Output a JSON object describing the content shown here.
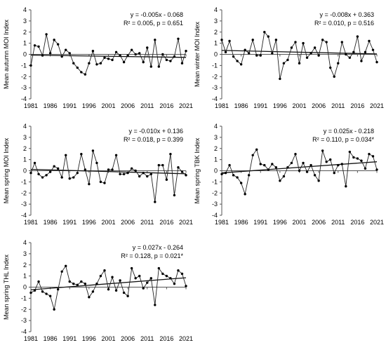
{
  "chart_data": [
    {
      "type": "line",
      "ylabel": "Mean autumn MOI Index",
      "equation": "y = -0.005x - 0.068",
      "stats": "R² = 0.005, p = 0.651",
      "xlim": [
        1981,
        2021
      ],
      "ylim": [
        -4,
        4
      ],
      "xticks": [
        "1981",
        "1986",
        "1991",
        "1996",
        "2001",
        "2006",
        "2011",
        "2016",
        "2021"
      ],
      "yticks": [
        "4",
        "3",
        "2",
        "1",
        "0",
        "-1",
        "-2",
        "-3",
        "-4"
      ],
      "trend": [
        -0.005,
        -0.068
      ],
      "x": [
        1981,
        1982,
        1983,
        1984,
        1985,
        1986,
        1987,
        1988,
        1989,
        1990,
        1991,
        1992,
        1993,
        1994,
        1995,
        1996,
        1997,
        1998,
        1999,
        2000,
        2001,
        2002,
        2003,
        2004,
        2005,
        2006,
        2007,
        2008,
        2009,
        2010,
        2011,
        2012,
        2013,
        2014,
        2015,
        2016,
        2017,
        2018,
        2019,
        2020,
        2021
      ],
      "values": [
        -1.0,
        0.8,
        0.7,
        -0.1,
        1.8,
        0.1,
        1.3,
        0.9,
        -0.2,
        0.4,
        0.1,
        -0.8,
        -1.2,
        -1.6,
        -1.8,
        -0.8,
        0.3,
        -0.9,
        -0.8,
        -0.3,
        -0.4,
        -0.5,
        0.2,
        -0.1,
        -0.7,
        -0.1,
        0.4,
        0.0,
        0.1,
        -0.7,
        0.6,
        -1.1,
        1.3,
        -1.1,
        0.0,
        -0.5,
        -0.6,
        -0.2,
        1.4,
        -0.8,
        0.3
      ]
    },
    {
      "type": "line",
      "ylabel": "Mean winter MOI Index",
      "equation": "y = -0.008x + 0.363",
      "stats": "R² = 0.010, p = 0.516",
      "xlim": [
        1981,
        2021
      ],
      "ylim": [
        -4,
        4
      ],
      "xticks": [
        "1981",
        "1986",
        "1991",
        "1996",
        "2001",
        "2006",
        "2011",
        "2016",
        "2021"
      ],
      "yticks": [
        "4",
        "3",
        "2",
        "1",
        "0",
        "-1",
        "-2",
        "-3",
        "-4"
      ],
      "trend": [
        -0.008,
        0.363
      ],
      "x": [
        1981,
        1982,
        1983,
        1984,
        1985,
        1986,
        1987,
        1988,
        1989,
        1990,
        1991,
        1992,
        1993,
        1994,
        1995,
        1996,
        1997,
        1998,
        1999,
        2000,
        2001,
        2002,
        2003,
        2004,
        2005,
        2006,
        2007,
        2008,
        2009,
        2010,
        2011,
        2012,
        2013,
        2014,
        2015,
        2016,
        2017,
        2018,
        2019,
        2020,
        2021
      ],
      "values": [
        1.3,
        0.2,
        1.2,
        -0.2,
        -0.6,
        -0.9,
        0.4,
        0.1,
        1.3,
        -0.1,
        -0.1,
        2.0,
        1.6,
        0.1,
        1.3,
        -2.2,
        -0.8,
        -0.5,
        0.6,
        1.1,
        -0.8,
        1.0,
        -0.3,
        0.1,
        0.6,
        -0.1,
        1.3,
        1.1,
        -1.2,
        -2.0,
        -0.8,
        1.1,
        0.0,
        -0.3,
        0.2,
        1.6,
        -0.6,
        0.2,
        1.2,
        0.4,
        -0.7
      ]
    },
    {
      "type": "line",
      "ylabel": "Mean spring MOI Index",
      "equation": "y = -0.010x + 0.136",
      "stats": "R² = 0.018, p = 0.399",
      "xlim": [
        1981,
        2021
      ],
      "ylim": [
        -4,
        4
      ],
      "xticks": [
        "1981",
        "1986",
        "1991",
        "1996",
        "2001",
        "2006",
        "2011",
        "2016",
        "2021"
      ],
      "yticks": [
        "4",
        "3",
        "2",
        "1",
        "0",
        "-1",
        "-2",
        "-3",
        "-4"
      ],
      "trend": [
        -0.01,
        0.136
      ],
      "x": [
        1981,
        1982,
        1983,
        1984,
        1985,
        1986,
        1987,
        1988,
        1989,
        1990,
        1991,
        1992,
        1993,
        1994,
        1995,
        1996,
        1997,
        1998,
        1999,
        2000,
        2001,
        2002,
        2003,
        2004,
        2005,
        2006,
        2007,
        2008,
        2009,
        2010,
        2011,
        2012,
        2013,
        2014,
        2015,
        2016,
        2017,
        2018,
        2019,
        2020,
        2021
      ],
      "values": [
        -0.2,
        0.7,
        -0.3,
        -0.6,
        -0.4,
        -0.1,
        0.4,
        0.2,
        -0.6,
        1.4,
        -0.7,
        -0.6,
        -0.2,
        1.5,
        0.1,
        -1.2,
        1.8,
        0.7,
        -1.0,
        -1.1,
        0.1,
        0.1,
        1.4,
        -0.3,
        -0.3,
        -0.2,
        0.2,
        0.0,
        -0.5,
        -0.2,
        -0.5,
        -0.3,
        -2.8,
        0.5,
        0.5,
        -0.8,
        1.5,
        -2.2,
        0.3,
        -0.1,
        -0.4
      ]
    },
    {
      "type": "line",
      "ylabel": "Mean spring TBK Index",
      "equation": "y = 0.025x - 0.218",
      "stats": "R² = 0.110, p = 0.034*",
      "xlim": [
        1981,
        2021
      ],
      "ylim": [
        -4,
        4
      ],
      "xticks": [
        "1981",
        "1986",
        "1991",
        "1996",
        "2001",
        "2006",
        "2011",
        "2016",
        "2021"
      ],
      "yticks": [
        "4",
        "3",
        "2",
        "1",
        "0",
        "-1",
        "-2",
        "-3",
        "-4"
      ],
      "trend": [
        0.025,
        -0.218
      ],
      "x": [
        1981,
        1982,
        1983,
        1984,
        1985,
        1986,
        1987,
        1988,
        1989,
        1990,
        1991,
        1992,
        1993,
        1994,
        1995,
        1996,
        1997,
        1998,
        1999,
        2000,
        2001,
        2002,
        2003,
        2004,
        2005,
        2006,
        2007,
        2008,
        2009,
        2010,
        2011,
        2012,
        2013,
        2014,
        2015,
        2016,
        2017,
        2018,
        2019,
        2020,
        2021
      ],
      "values": [
        -0.3,
        -0.2,
        0.5,
        -0.4,
        -0.6,
        -1.1,
        -2.1,
        -0.4,
        1.4,
        1.9,
        0.6,
        0.5,
        0.1,
        0.6,
        0.3,
        -0.9,
        -0.5,
        0.3,
        0.7,
        1.5,
        0.0,
        0.7,
        -0.1,
        0.5,
        -0.4,
        -0.9,
        1.8,
        0.8,
        1.0,
        -0.2,
        0.5,
        0.6,
        -1.4,
        1.7,
        1.2,
        1.1,
        0.9,
        0.2,
        1.5,
        1.3,
        0.1
      ]
    },
    {
      "type": "line",
      "ylabel": "Mean spring THL Index",
      "equation": "y = 0.027x - 0.264",
      "stats": "R² = 0.128, p = 0.021*",
      "xlim": [
        1981,
        2021
      ],
      "ylim": [
        -4,
        4
      ],
      "xticks": [
        "1981",
        "1986",
        "1991",
        "1996",
        "2001",
        "2006",
        "2011",
        "2016",
        "2021"
      ],
      "yticks": [
        "4",
        "3",
        "2",
        "1",
        "0",
        "-1",
        "-2",
        "-3",
        "-4"
      ],
      "trend": [
        0.027,
        -0.264
      ],
      "x": [
        1981,
        1982,
        1983,
        1984,
        1985,
        1986,
        1987,
        1988,
        1989,
        1990,
        1991,
        1992,
        1993,
        1994,
        1995,
        1996,
        1997,
        1998,
        1999,
        2000,
        2001,
        2002,
        2003,
        2004,
        2005,
        2006,
        2007,
        2008,
        2009,
        2010,
        2011,
        2012,
        2013,
        2014,
        2015,
        2016,
        2017,
        2018,
        2019,
        2020,
        2021
      ],
      "values": [
        -0.5,
        -0.3,
        0.5,
        -0.4,
        -0.6,
        -0.8,
        -2.0,
        -0.2,
        1.4,
        1.9,
        0.5,
        0.3,
        0.2,
        0.5,
        0.3,
        -0.9,
        -0.4,
        0.3,
        1.0,
        1.5,
        -0.2,
        0.9,
        -0.3,
        0.6,
        -0.5,
        -0.8,
        1.7,
        0.8,
        1.0,
        -0.1,
        0.4,
        0.8,
        -1.6,
        1.7,
        1.2,
        1.0,
        0.8,
        0.3,
        1.5,
        1.2,
        0.1
      ]
    }
  ]
}
